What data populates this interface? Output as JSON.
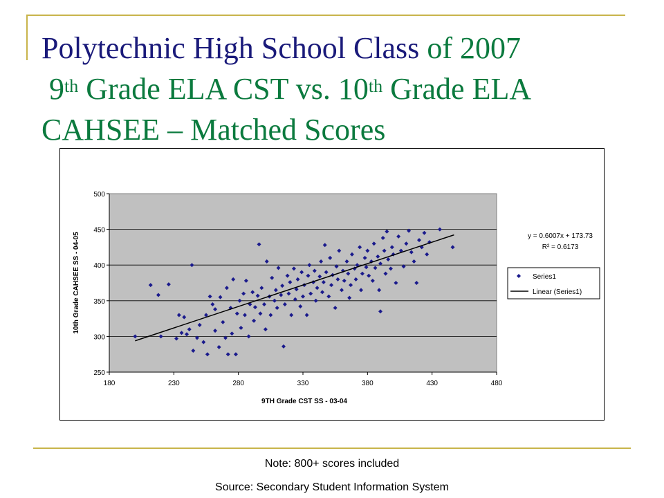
{
  "slide": {
    "title_part1": "Polytechnic High School Class ",
    "title_part2": "of 2007",
    "title_line2_a": "9",
    "title_line2_sup_a": "th",
    "title_line2_b": " Grade ELA CST vs. 10",
    "title_line2_sup_b": "th",
    "title_line2_c": " Grade ELA",
    "title_line3": "CAHSEE – Matched Scores",
    "note": "Note: 800+ scores included",
    "source": "Source: Secondary Student Information System"
  },
  "colors": {
    "title_green": "#0b7a3e",
    "title_navy": "#1a1a7a",
    "accent_rule": "#c8b44a",
    "plot_bg": "#c0c0c0",
    "marker": "#1a1a8c",
    "trend": "#000000"
  },
  "chart_data": {
    "type": "scatter",
    "xlabel": "9TH Grade CST SS - 03-04",
    "ylabel": "10th Grade CAHSEE SS - 04-05",
    "xlim": [
      180,
      480
    ],
    "ylim": [
      250,
      500
    ],
    "xticks": [
      180,
      230,
      280,
      330,
      380,
      430,
      480
    ],
    "yticks": [
      250,
      300,
      350,
      400,
      450,
      500
    ],
    "grid": "horizontal",
    "legend_placement": "right",
    "legend": [
      "Series1",
      "Linear (Series1)"
    ],
    "trendline": {
      "slope": 0.6007,
      "intercept": 173.73,
      "x_range": [
        200,
        447
      ]
    },
    "equation_text": "y = 0.6007x + 173.73",
    "r2_text": "R² = 0.6173",
    "series": [
      {
        "name": "Series1",
        "points": [
          [
            200,
            300
          ],
          [
            212,
            372
          ],
          [
            218,
            358
          ],
          [
            226,
            373
          ],
          [
            220,
            300
          ],
          [
            232,
            297
          ],
          [
            236,
            305
          ],
          [
            240,
            303
          ],
          [
            234,
            330
          ],
          [
            238,
            327
          ],
          [
            244,
            400
          ],
          [
            242,
            310
          ],
          [
            245,
            280
          ],
          [
            248,
            298
          ],
          [
            250,
            316
          ],
          [
            253,
            292
          ],
          [
            255,
            330
          ],
          [
            256,
            275
          ],
          [
            258,
            356
          ],
          [
            260,
            345
          ],
          [
            262,
            308
          ],
          [
            262,
            338
          ],
          [
            265,
            285
          ],
          [
            266,
            355
          ],
          [
            268,
            320
          ],
          [
            270,
            298
          ],
          [
            271,
            368
          ],
          [
            272,
            275
          ],
          [
            274,
            340
          ],
          [
            275,
            304
          ],
          [
            276,
            380
          ],
          [
            278,
            275
          ],
          [
            279,
            332
          ],
          [
            281,
            350
          ],
          [
            282,
            312
          ],
          [
            284,
            360
          ],
          [
            285,
            330
          ],
          [
            286,
            378
          ],
          [
            288,
            300
          ],
          [
            289,
            345
          ],
          [
            291,
            362
          ],
          [
            292,
            322
          ],
          [
            293,
            341
          ],
          [
            295,
            357
          ],
          [
            296,
            429
          ],
          [
            297,
            332
          ],
          [
            298,
            368
          ],
          [
            300,
            345
          ],
          [
            301,
            310
          ],
          [
            302,
            405
          ],
          [
            304,
            356
          ],
          [
            305,
            330
          ],
          [
            306,
            382
          ],
          [
            308,
            350
          ],
          [
            309,
            365
          ],
          [
            310,
            340
          ],
          [
            311,
            396
          ],
          [
            313,
            358
          ],
          [
            314,
            371
          ],
          [
            315,
            286
          ],
          [
            316,
            345
          ],
          [
            318,
            385
          ],
          [
            319,
            360
          ],
          [
            320,
            376
          ],
          [
            321,
            330
          ],
          [
            323,
            395
          ],
          [
            324,
            352
          ],
          [
            325,
            366
          ],
          [
            326,
            380
          ],
          [
            328,
            342
          ],
          [
            329,
            390
          ],
          [
            330,
            356
          ],
          [
            331,
            372
          ],
          [
            333,
            330
          ],
          [
            334,
            385
          ],
          [
            335,
            400
          ],
          [
            336,
            360
          ],
          [
            338,
            376
          ],
          [
            339,
            392
          ],
          [
            340,
            350
          ],
          [
            341,
            368
          ],
          [
            343,
            384
          ],
          [
            344,
            405
          ],
          [
            345,
            362
          ],
          [
            346,
            376
          ],
          [
            347,
            428
          ],
          [
            348,
            390
          ],
          [
            350,
            356
          ],
          [
            351,
            410
          ],
          [
            352,
            372
          ],
          [
            353,
            386
          ],
          [
            355,
            340
          ],
          [
            356,
            398
          ],
          [
            357,
            380
          ],
          [
            358,
            420
          ],
          [
            360,
            365
          ],
          [
            361,
            392
          ],
          [
            362,
            378
          ],
          [
            364,
            405
          ],
          [
            365,
            388
          ],
          [
            366,
            354
          ],
          [
            367,
            372
          ],
          [
            368,
            415
          ],
          [
            370,
            395
          ],
          [
            371,
            380
          ],
          [
            372,
            400
          ],
          [
            374,
            425
          ],
          [
            375,
            365
          ],
          [
            376,
            388
          ],
          [
            378,
            410
          ],
          [
            379,
            397
          ],
          [
            380,
            420
          ],
          [
            381,
            385
          ],
          [
            383,
            405
          ],
          [
            384,
            378
          ],
          [
            385,
            430
          ],
          [
            386,
            396
          ],
          [
            388,
            412
          ],
          [
            389,
            365
          ],
          [
            390,
            402
          ],
          [
            392,
            438
          ],
          [
            393,
            420
          ],
          [
            394,
            388
          ],
          [
            395,
            447
          ],
          [
            396,
            408
          ],
          [
            398,
            395
          ],
          [
            399,
            425
          ],
          [
            400,
            415
          ],
          [
            402,
            375
          ],
          [
            404,
            440
          ],
          [
            406,
            420
          ],
          [
            408,
            398
          ],
          [
            410,
            430
          ],
          [
            412,
            448
          ],
          [
            414,
            418
          ],
          [
            416,
            405
          ],
          [
            418,
            375
          ],
          [
            420,
            435
          ],
          [
            422,
            425
          ],
          [
            424,
            445
          ],
          [
            426,
            415
          ],
          [
            428,
            432
          ],
          [
            436,
            450
          ],
          [
            446,
            425
          ],
          [
            390,
            335
          ]
        ]
      },
      {
        "name": "Linear (Series1)"
      }
    ]
  }
}
